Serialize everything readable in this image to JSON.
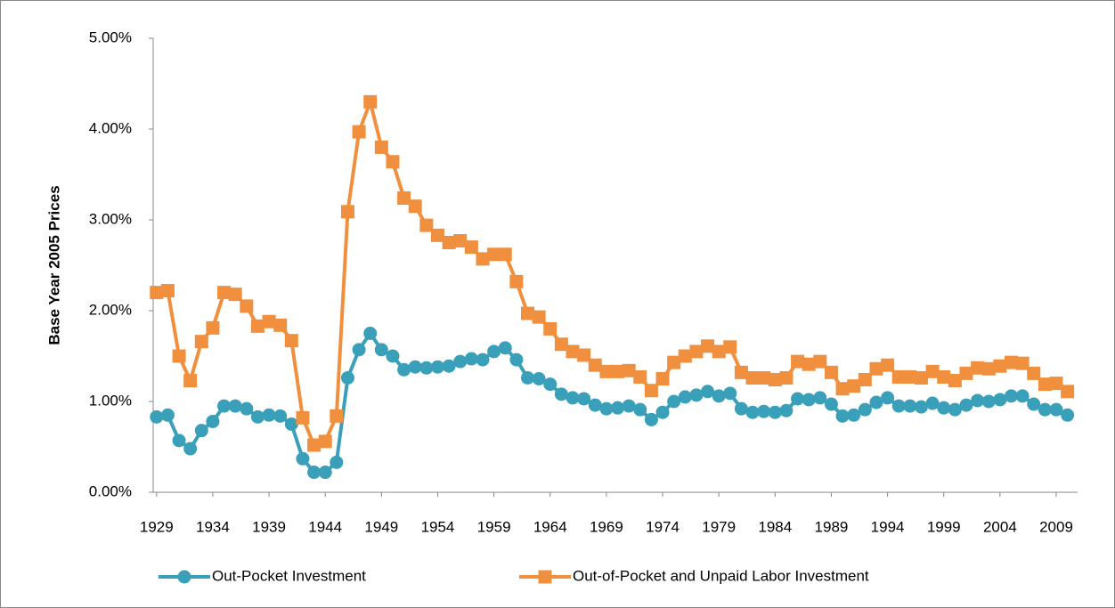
{
  "chart_data": {
    "type": "line",
    "y_label": "Base Year 2005 Prices",
    "x": [
      1929,
      1930,
      1931,
      1932,
      1933,
      1934,
      1935,
      1936,
      1937,
      1938,
      1939,
      1940,
      1941,
      1942,
      1943,
      1944,
      1945,
      1946,
      1947,
      1948,
      1949,
      1950,
      1951,
      1952,
      1953,
      1954,
      1955,
      1956,
      1957,
      1958,
      1959,
      1960,
      1961,
      1962,
      1963,
      1964,
      1965,
      1966,
      1967,
      1968,
      1969,
      1970,
      1971,
      1972,
      1973,
      1974,
      1975,
      1976,
      1977,
      1978,
      1979,
      1980,
      1981,
      1982,
      1983,
      1984,
      1985,
      1986,
      1987,
      1988,
      1989,
      1990,
      1991,
      1992,
      1993,
      1994,
      1995,
      1996,
      1997,
      1998,
      1999,
      2000,
      2001,
      2002,
      2003,
      2004,
      2005,
      2006,
      2007,
      2008,
      2009,
      2010
    ],
    "series": [
      {
        "name": "Out-Pocket Investment",
        "color": "#3a9fb8",
        "marker": "circle",
        "values": [
          0.83,
          0.85,
          0.57,
          0.48,
          0.68,
          0.78,
          0.95,
          0.95,
          0.92,
          0.83,
          0.85,
          0.84,
          0.75,
          0.37,
          0.22,
          0.22,
          0.33,
          1.26,
          1.57,
          1.75,
          1.57,
          1.5,
          1.35,
          1.38,
          1.37,
          1.38,
          1.39,
          1.44,
          1.47,
          1.46,
          1.55,
          1.59,
          1.46,
          1.26,
          1.25,
          1.19,
          1.08,
          1.04,
          1.03,
          0.96,
          0.92,
          0.93,
          0.95,
          0.91,
          0.8,
          0.88,
          1.0,
          1.05,
          1.07,
          1.11,
          1.06,
          1.09,
          0.92,
          0.88,
          0.89,
          0.88,
          0.9,
          1.03,
          1.02,
          1.04,
          0.97,
          0.84,
          0.85,
          0.91,
          0.99,
          1.04,
          0.95,
          0.95,
          0.94,
          0.98,
          0.93,
          0.91,
          0.96,
          1.01,
          1.0,
          1.02,
          1.06,
          1.06,
          0.97,
          0.91,
          0.91,
          0.85
        ]
      },
      {
        "name": "Out-of-Pocket and Unpaid Labor Investment",
        "color": "#f0903e",
        "marker": "square",
        "values": [
          2.2,
          2.22,
          1.5,
          1.23,
          1.66,
          1.81,
          2.2,
          2.18,
          2.05,
          1.83,
          1.88,
          1.84,
          1.67,
          0.82,
          0.52,
          0.56,
          0.84,
          3.09,
          3.97,
          4.3,
          3.8,
          3.64,
          3.24,
          3.15,
          2.94,
          2.83,
          2.75,
          2.77,
          2.7,
          2.57,
          2.62,
          2.62,
          2.32,
          1.97,
          1.93,
          1.8,
          1.63,
          1.55,
          1.51,
          1.4,
          1.33,
          1.33,
          1.34,
          1.27,
          1.12,
          1.25,
          1.43,
          1.5,
          1.55,
          1.61,
          1.55,
          1.6,
          1.32,
          1.26,
          1.26,
          1.24,
          1.26,
          1.44,
          1.41,
          1.44,
          1.32,
          1.14,
          1.17,
          1.24,
          1.36,
          1.4,
          1.27,
          1.27,
          1.26,
          1.33,
          1.27,
          1.23,
          1.31,
          1.37,
          1.36,
          1.39,
          1.43,
          1.42,
          1.31,
          1.19,
          1.2,
          1.11
        ]
      }
    ],
    "xlim": [
      1928.7,
      2010.9
    ],
    "xticks": [
      1929,
      1934,
      1939,
      1944,
      1949,
      1954,
      1959,
      1964,
      1969,
      1974,
      1979,
      1984,
      1989,
      1994,
      1999,
      2004,
      2009
    ],
    "ylim": [
      0,
      5
    ],
    "yticks": [
      {
        "value": 0,
        "label": "0.00%"
      },
      {
        "value": 1,
        "label": "1.00%"
      },
      {
        "value": 2,
        "label": "2.00%"
      },
      {
        "value": 3,
        "label": "3.00%"
      },
      {
        "value": 4,
        "label": "4.00%"
      },
      {
        "value": 5,
        "label": "5.00%"
      }
    ],
    "grid": false,
    "legend": "bottom"
  }
}
